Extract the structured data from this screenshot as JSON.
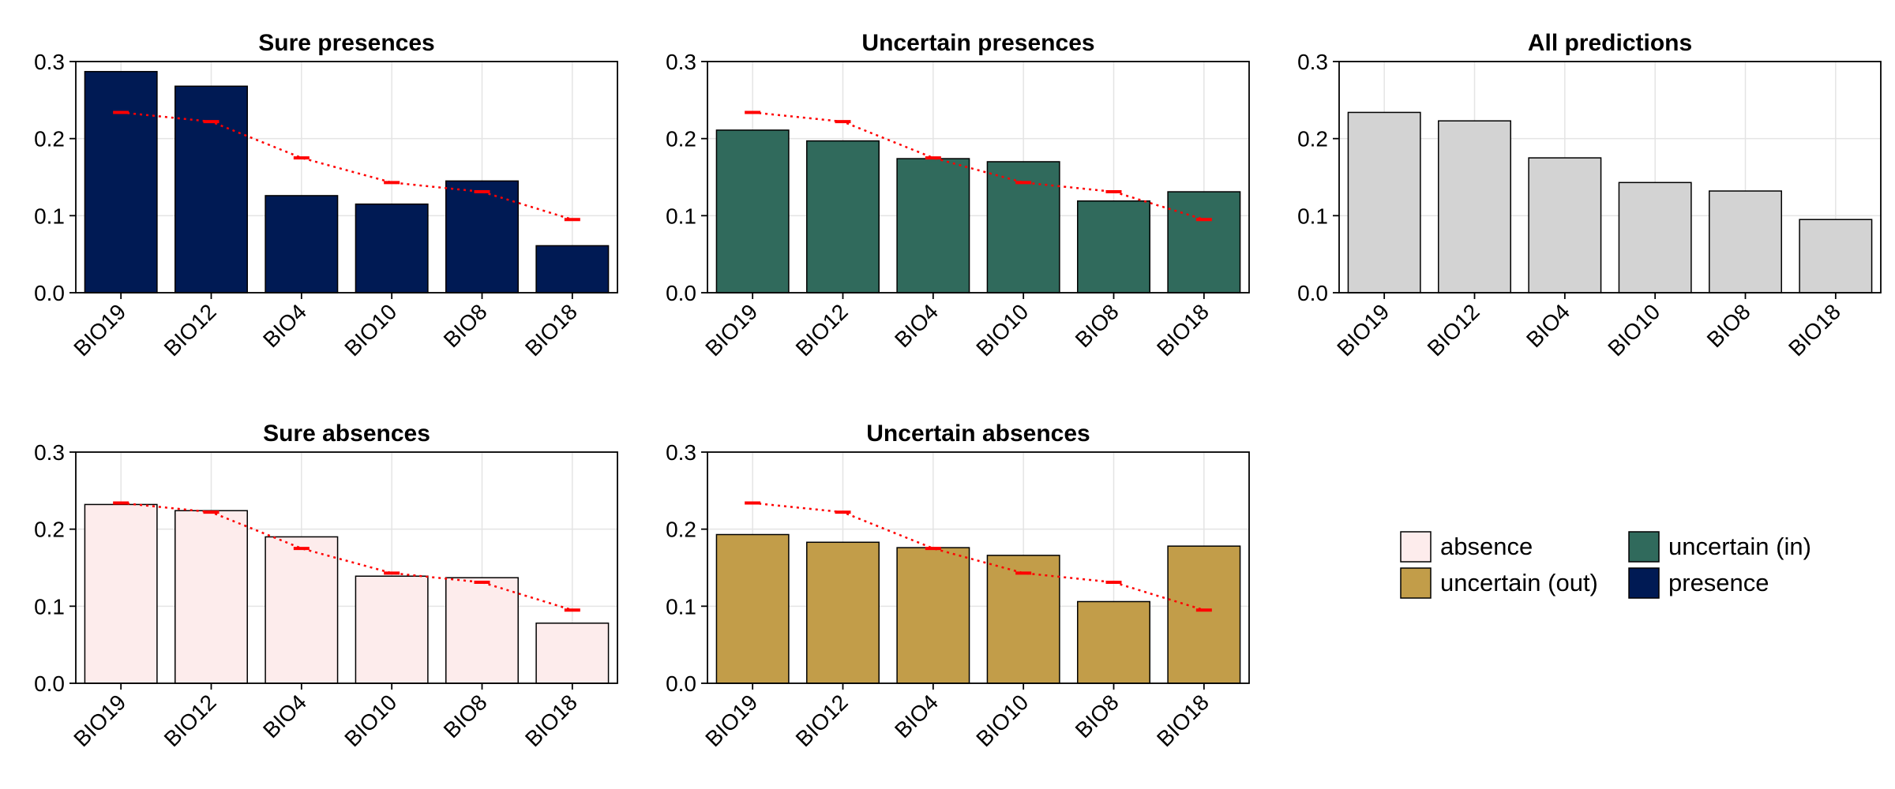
{
  "chart_data": [
    {
      "type": "bar",
      "title": "Sure presences",
      "categories": [
        "BIO19",
        "BIO12",
        "BIO4",
        "BIO10",
        "BIO8",
        "BIO18"
      ],
      "values": [
        0.287,
        0.268,
        0.126,
        0.115,
        0.145,
        0.061
      ],
      "reference": [
        0.234,
        0.222,
        0.175,
        0.143,
        0.131,
        0.095
      ],
      "bar_color": "#001a54",
      "reference_color": "#ff0000",
      "ylim": [
        0,
        0.3
      ],
      "yticks": [
        "0.0",
        "0.1",
        "0.2",
        "0.3"
      ],
      "grid": true
    },
    {
      "type": "bar",
      "title": "Uncertain presences",
      "categories": [
        "BIO19",
        "BIO12",
        "BIO4",
        "BIO10",
        "BIO8",
        "BIO18"
      ],
      "values": [
        0.211,
        0.197,
        0.174,
        0.17,
        0.119,
        0.131
      ],
      "reference": [
        0.234,
        0.222,
        0.175,
        0.143,
        0.131,
        0.095
      ],
      "bar_color": "#306a5c",
      "reference_color": "#ff0000",
      "ylim": [
        0,
        0.3
      ],
      "yticks": [
        "0.0",
        "0.1",
        "0.2",
        "0.3"
      ],
      "grid": true
    },
    {
      "type": "bar",
      "title": "All predictions",
      "categories": [
        "BIO19",
        "BIO12",
        "BIO4",
        "BIO10",
        "BIO8",
        "BIO18"
      ],
      "values": [
        0.234,
        0.223,
        0.175,
        0.143,
        0.132,
        0.095
      ],
      "reference": [],
      "bar_color": "#d3d3d3",
      "reference_color": "#ff0000",
      "ylim": [
        0,
        0.3
      ],
      "yticks": [
        "0.0",
        "0.1",
        "0.2",
        "0.3"
      ],
      "grid": true
    },
    {
      "type": "bar",
      "title": "Sure absences",
      "categories": [
        "BIO19",
        "BIO12",
        "BIO4",
        "BIO10",
        "BIO8",
        "BIO18"
      ],
      "values": [
        0.232,
        0.224,
        0.19,
        0.139,
        0.137,
        0.078
      ],
      "reference": [
        0.234,
        0.222,
        0.175,
        0.143,
        0.131,
        0.095
      ],
      "bar_color": "#fdecec",
      "reference_color": "#ff0000",
      "ylim": [
        0,
        0.3
      ],
      "yticks": [
        "0.0",
        "0.1",
        "0.2",
        "0.3"
      ],
      "grid": true
    },
    {
      "type": "bar",
      "title": "Uncertain absences",
      "categories": [
        "BIO19",
        "BIO12",
        "BIO4",
        "BIO10",
        "BIO8",
        "BIO18"
      ],
      "values": [
        0.193,
        0.183,
        0.176,
        0.166,
        0.106,
        0.178
      ],
      "reference": [
        0.234,
        0.222,
        0.175,
        0.143,
        0.131,
        0.095
      ],
      "bar_color": "#c29d49",
      "reference_color": "#ff0000",
      "ylim": [
        0,
        0.3
      ],
      "yticks": [
        "0.0",
        "0.1",
        "0.2",
        "0.3"
      ],
      "grid": true
    }
  ],
  "legend": {
    "placement": "bottom-right",
    "entries": [
      {
        "label": "absence",
        "color": "#fdecec"
      },
      {
        "label": "uncertain (in)",
        "color": "#306a5c"
      },
      {
        "label": "uncertain (out)",
        "color": "#c29d49"
      },
      {
        "label": "presence",
        "color": "#001a54"
      }
    ]
  }
}
